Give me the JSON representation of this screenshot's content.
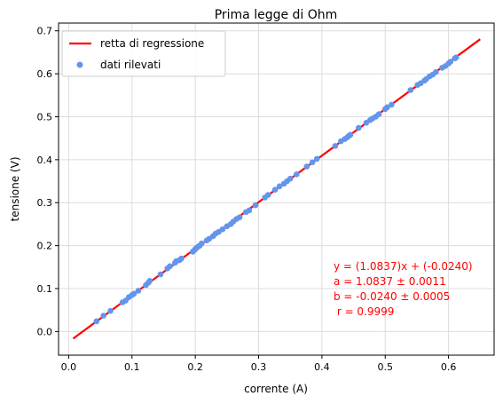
{
  "chart_data": {
    "type": "scatter",
    "title": "Prima legge di Ohm",
    "xlabel": "corrente (A)",
    "ylabel": "tensione (V)",
    "xlim": [
      -0.016,
      0.672
    ],
    "ylim": [
      -0.055,
      0.718
    ],
    "xticks": [
      "0.0",
      "0.1",
      "0.2",
      "0.3",
      "0.4",
      "0.5",
      "0.6"
    ],
    "yticks": [
      "0.0",
      "0.1",
      "0.2",
      "0.3",
      "0.4",
      "0.5",
      "0.6",
      "0.7"
    ],
    "grid": true,
    "legend": {
      "placement": "top-left",
      "entries": [
        "retta di regressione",
        "dati rilevati"
      ]
    },
    "colors": {
      "fit": "#ff0000",
      "points": "#6495ed",
      "annotation": "#ff0000"
    },
    "fit_line": {
      "name": "retta di regressione",
      "x": [
        0.007,
        0.65
      ],
      "y": [
        -0.0164,
        0.6804
      ]
    },
    "scatter": {
      "name": "dati rilevati",
      "x": [
        0.044,
        0.055,
        0.066,
        0.085,
        0.09,
        0.095,
        0.1,
        0.103,
        0.11,
        0.122,
        0.126,
        0.128,
        0.145,
        0.156,
        0.16,
        0.168,
        0.17,
        0.175,
        0.178,
        0.196,
        0.199,
        0.2,
        0.202,
        0.205,
        0.207,
        0.21,
        0.218,
        0.222,
        0.228,
        0.232,
        0.237,
        0.243,
        0.25,
        0.256,
        0.26,
        0.265,
        0.27,
        0.28,
        0.285,
        0.295,
        0.31,
        0.315,
        0.326,
        0.333,
        0.34,
        0.345,
        0.35,
        0.36,
        0.376,
        0.385,
        0.392,
        0.421,
        0.43,
        0.436,
        0.44,
        0.443,
        0.445,
        0.458,
        0.47,
        0.476,
        0.48,
        0.485,
        0.49,
        0.5,
        0.503,
        0.51,
        0.54,
        0.551,
        0.556,
        0.562,
        0.565,
        0.57,
        0.575,
        0.58,
        0.59,
        0.595,
        0.6,
        0.603,
        0.61,
        0.612
      ],
      "y": [
        0.024,
        0.037,
        0.048,
        0.068,
        0.072,
        0.08,
        0.085,
        0.088,
        0.095,
        0.108,
        0.114,
        0.118,
        0.133,
        0.147,
        0.152,
        0.16,
        0.164,
        0.166,
        0.17,
        0.186,
        0.19,
        0.192,
        0.195,
        0.198,
        0.2,
        0.205,
        0.212,
        0.216,
        0.222,
        0.228,
        0.232,
        0.238,
        0.245,
        0.25,
        0.256,
        0.262,
        0.266,
        0.278,
        0.282,
        0.294,
        0.312,
        0.318,
        0.33,
        0.338,
        0.344,
        0.35,
        0.356,
        0.366,
        0.384,
        0.394,
        0.402,
        0.432,
        0.443,
        0.448,
        0.452,
        0.456,
        0.458,
        0.474,
        0.486,
        0.492,
        0.496,
        0.5,
        0.506,
        0.518,
        0.522,
        0.528,
        0.562,
        0.574,
        0.578,
        0.584,
        0.588,
        0.594,
        0.598,
        0.604,
        0.614,
        0.618,
        0.624,
        0.628,
        0.636,
        0.638
      ]
    },
    "annotation": [
      "y = (1.0837)x + (-0.0240)",
      "a = 1.0837 ± 0.0011",
      "b = -0.0240 ± 0.0005",
      " r = 0.9999"
    ]
  }
}
